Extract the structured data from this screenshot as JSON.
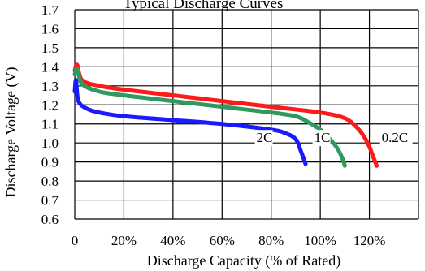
{
  "chart_data": {
    "type": "line",
    "title": "Typical Discharge Curves",
    "xlabel": "Discharge Capacity (% of Rated)",
    "ylabel": "Discharge Voltage (V)",
    "xlim": [
      0,
      140
    ],
    "ylim": [
      0.6,
      1.7
    ],
    "x_ticks": [
      0,
      20,
      40,
      60,
      80,
      100,
      120
    ],
    "x_tick_labels": [
      "0",
      "20%",
      "40%",
      "60%",
      "80%",
      "100%",
      "120%"
    ],
    "y_ticks": [
      0.6,
      0.7,
      0.8,
      0.9,
      1.0,
      1.1,
      1.2,
      1.3,
      1.4,
      1.5,
      1.6,
      1.7
    ],
    "y_tick_labels": [
      "0.6",
      "0.7",
      "0.8",
      "0.9",
      "1.0",
      "1.1",
      "1.2",
      "1.3",
      "1.4",
      "1.5",
      "1.6",
      "1.7"
    ],
    "grid": true,
    "series": [
      {
        "name": "0.2C",
        "color": "#ff1a1a",
        "x": [
          0,
          1,
          3,
          10,
          20,
          40,
          60,
          80,
          100,
          110,
          115,
          118,
          120,
          121.5,
          123
        ],
        "y": [
          1.38,
          1.41,
          1.33,
          1.3,
          1.28,
          1.25,
          1.22,
          1.19,
          1.16,
          1.13,
          1.08,
          1.03,
          0.98,
          0.93,
          0.88
        ]
      },
      {
        "name": "1C",
        "color": "#2e9a5e",
        "x": [
          0,
          1,
          3,
          10,
          20,
          40,
          60,
          80,
          90,
          95,
          100,
          104,
          107,
          109,
          110
        ],
        "y": [
          1.36,
          1.39,
          1.31,
          1.27,
          1.25,
          1.22,
          1.19,
          1.16,
          1.14,
          1.11,
          1.07,
          1.02,
          0.97,
          0.92,
          0.88
        ]
      },
      {
        "name": "2C",
        "color": "#1a1aff",
        "x": [
          0,
          0.5,
          1.5,
          5,
          10,
          20,
          40,
          60,
          80,
          86,
          90,
          92,
          94
        ],
        "y": [
          1.27,
          1.33,
          1.22,
          1.18,
          1.16,
          1.14,
          1.12,
          1.1,
          1.07,
          1.05,
          1.02,
          0.96,
          0.89
        ]
      }
    ],
    "series_label_positions": [
      {
        "name": "2C",
        "x": 74,
        "y": 1.0
      },
      {
        "name": "1C",
        "x": 97.5,
        "y": 1.0
      },
      {
        "name": "0.2C",
        "x": 125,
        "y": 1.0
      }
    ]
  }
}
